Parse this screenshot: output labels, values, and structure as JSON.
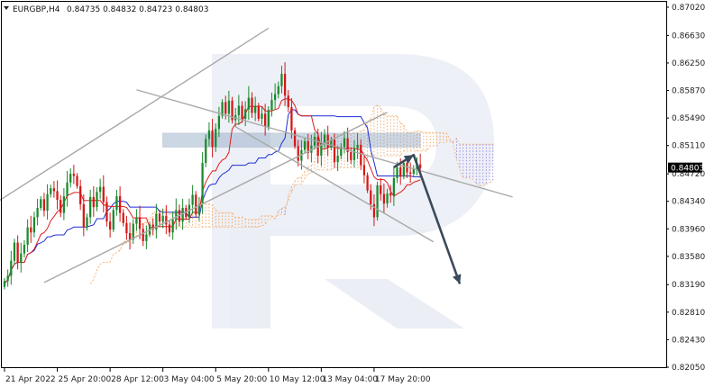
{
  "header": {
    "symbol": "EURGBP,H4",
    "ohlc": "0.84735 0.84832 0.84723 0.84803",
    "menu_icon": "triangle-down-icon"
  },
  "price_tag": "0.84803",
  "chart_data": {
    "type": "candlestick",
    "title": "",
    "xlabel": "",
    "ylabel": "",
    "ylim": [
      0.8205,
      0.8702
    ],
    "grid": false,
    "y_ticks": [
      "0.87020",
      "0.86630",
      "0.86250",
      "0.85870",
      "0.85490",
      "0.85110",
      "0.84720",
      "0.84340",
      "0.83960",
      "0.83580",
      "0.83190",
      "0.82810",
      "0.82430",
      "0.82050"
    ],
    "y_tick_values": [
      0.8702,
      0.8663,
      0.8625,
      0.8587,
      0.8549,
      0.8511,
      0.8472,
      0.8434,
      0.8396,
      0.8358,
      0.8319,
      0.8281,
      0.8243,
      0.8205
    ],
    "x_ticks": [
      "21 Apr 2022",
      "25 Apr 20:00",
      "28 Apr 12:00",
      "3 May 04:00",
      "5 May 20:00",
      "10 May 12:00",
      "13 May 04:00",
      "17 May 20:00"
    ],
    "x_tick_index": [
      0,
      16,
      32,
      48,
      64,
      80,
      96,
      112
    ],
    "last_index": 126,
    "future_index": 150,
    "close_series": [
      0.8324,
      0.8331,
      0.8352,
      0.8377,
      0.8349,
      0.8362,
      0.8374,
      0.8398,
      0.8391,
      0.8412,
      0.8425,
      0.8437,
      0.8421,
      0.8444,
      0.8452,
      0.8448,
      0.8436,
      0.8418,
      0.8441,
      0.846,
      0.8472,
      0.8469,
      0.8455,
      0.843,
      0.8398,
      0.8412,
      0.844,
      0.8426,
      0.8447,
      0.8454,
      0.8433,
      0.8406,
      0.8395,
      0.8422,
      0.8441,
      0.8418,
      0.8404,
      0.839,
      0.8381,
      0.8403,
      0.8412,
      0.8396,
      0.8379,
      0.8388,
      0.8402,
      0.8395,
      0.8417,
      0.8406,
      0.8414,
      0.8402,
      0.8391,
      0.8409,
      0.8422,
      0.8406,
      0.8425,
      0.8412,
      0.8429,
      0.8443,
      0.8416,
      0.843,
      0.8487,
      0.852,
      0.8532,
      0.8509,
      0.8534,
      0.8552,
      0.8571,
      0.8555,
      0.8573,
      0.8546,
      0.8553,
      0.8566,
      0.8548,
      0.8561,
      0.8577,
      0.8556,
      0.8566,
      0.8548,
      0.8555,
      0.8537,
      0.856,
      0.8574,
      0.8582,
      0.8593,
      0.861,
      0.858,
      0.8564,
      0.8532,
      0.851,
      0.849,
      0.8505,
      0.8517,
      0.8501,
      0.8511,
      0.8523,
      0.8497,
      0.8514,
      0.8526,
      0.8508,
      0.8519,
      0.8488,
      0.8497,
      0.8509,
      0.8521,
      0.8502,
      0.8491,
      0.8507,
      0.8512,
      0.8484,
      0.847,
      0.8449,
      0.843,
      0.8412,
      0.8456,
      0.8444,
      0.8431,
      0.8445,
      0.8442,
      0.8466,
      0.8481,
      0.8468,
      0.8487,
      0.8474,
      0.8472,
      0.8479,
      0.8485,
      0.848
    ],
    "annotations": {
      "upper_channel": [
        [
          -4,
          0.8428
        ],
        [
          80,
          0.8673
        ]
      ],
      "lower_channel": [
        [
          12,
          0.8322
        ],
        [
          116,
          0.8557
        ]
      ],
      "descending_upper": [
        [
          40,
          0.8588
        ],
        [
          154,
          0.844
        ]
      ],
      "descending_lower": [
        [
          70,
          0.8537
        ],
        [
          130,
          0.8378
        ]
      ],
      "resistance_zone": [
        0.8509,
        0.8528
      ],
      "forecast": [
        [
          118,
          0.8481
        ],
        [
          124,
          0.8498
        ],
        [
          138,
          0.832
        ]
      ]
    }
  }
}
